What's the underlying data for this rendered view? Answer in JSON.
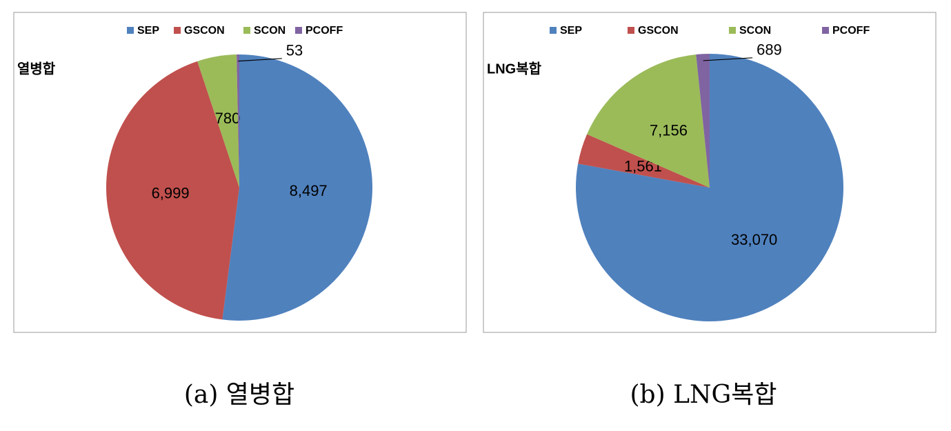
{
  "chart_data": [
    {
      "type": "pie",
      "title": "열병합",
      "caption": "(a) 열병합",
      "categories": [
        "SEP",
        "GSCON",
        "SCON",
        "PCOFF"
      ],
      "values": [
        8497,
        6999,
        780,
        53
      ],
      "value_labels": [
        "8,497",
        "6,999",
        "780",
        "53"
      ],
      "colors": [
        "#4f81bd",
        "#c0504d",
        "#9bbb59",
        "#8064a2"
      ],
      "legend": "top"
    },
    {
      "type": "pie",
      "title": "LNG복합",
      "caption": "(b) LNG복합",
      "categories": [
        "SEP",
        "GSCON",
        "SCON",
        "PCOFF"
      ],
      "values": [
        33070,
        1561,
        7156,
        689
      ],
      "value_labels": [
        "33,070",
        "1,561",
        "7,156",
        "689"
      ],
      "colors": [
        "#4f81bd",
        "#c0504d",
        "#9bbb59",
        "#8064a2"
      ],
      "legend": "top"
    }
  ]
}
